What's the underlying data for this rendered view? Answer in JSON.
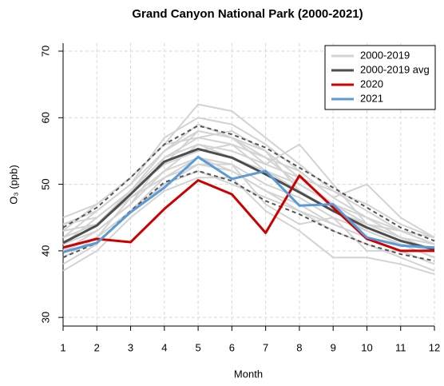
{
  "chart_data": {
    "type": "line",
    "title": "Grand Canyon National Park (2000-2021)",
    "x_label": "Month",
    "y_label": "O₃ (ppb)",
    "x": [
      1,
      2,
      3,
      4,
      5,
      6,
      7,
      8,
      9,
      10,
      11,
      12
    ],
    "xlim": [
      1,
      12
    ],
    "xticks": [
      1,
      2,
      3,
      4,
      5,
      6,
      7,
      8,
      9,
      10,
      11,
      12
    ],
    "ylim": [
      28.7,
      71.2
    ],
    "yticks": [
      30,
      40,
      50,
      60,
      70
    ],
    "grid": true,
    "legend": "top-right",
    "background": {
      "name": "2000-2019",
      "color": "#d3d3d3",
      "lines": [
        [
          44,
          46,
          50,
          55,
          58,
          57,
          54,
          52,
          48,
          45,
          43,
          41
        ],
        [
          42,
          44,
          49,
          54,
          57,
          58,
          55,
          51,
          47,
          44,
          42,
          40
        ],
        [
          40,
          43,
          47,
          52,
          54,
          53,
          50,
          48,
          45,
          43,
          41,
          39
        ],
        [
          38,
          41,
          46,
          51,
          53,
          52,
          49,
          46,
          44,
          42,
          40,
          38
        ],
        [
          45,
          47,
          51,
          56,
          62,
          61,
          57,
          53,
          49,
          46,
          43,
          42
        ],
        [
          41,
          45,
          49,
          53,
          55,
          56,
          52,
          49,
          46,
          44,
          42,
          41
        ],
        [
          43,
          44,
          48,
          52,
          56,
          54,
          52,
          50,
          47,
          45,
          42,
          40
        ],
        [
          39,
          42,
          46,
          50,
          52,
          50,
          48,
          46,
          43,
          41,
          39,
          37
        ],
        [
          42,
          46,
          50,
          57,
          60,
          59,
          56,
          52,
          48,
          50,
          45,
          42
        ],
        [
          41,
          43,
          47,
          54,
          56,
          55,
          53,
          56,
          50,
          44,
          43,
          41
        ],
        [
          37,
          40,
          45,
          49,
          51,
          51,
          46,
          43,
          39,
          39,
          38,
          36.5
        ],
        [
          44,
          45,
          49,
          53,
          58,
          57,
          55,
          49,
          46,
          43,
          41,
          40
        ],
        [
          40,
          42,
          48,
          51,
          54,
          52,
          49,
          47,
          44,
          42,
          41,
          39
        ],
        [
          42,
          44,
          49,
          55,
          59,
          57,
          53,
          51,
          49,
          47,
          44,
          42
        ],
        [
          43,
          47,
          51,
          56,
          57,
          56,
          54,
          50,
          47,
          44,
          43,
          41
        ],
        [
          40,
          41,
          46,
          50,
          53,
          53,
          47,
          44,
          45,
          40,
          40,
          38
        ]
      ]
    },
    "dashed": {
      "color": "#555555",
      "lines": [
        [
          43.5,
          46.5,
          51,
          56,
          58.8,
          57.5,
          55.5,
          52.5,
          49.5,
          46.5,
          43.5,
          41.5
        ],
        [
          39,
          41.2,
          46,
          50.3,
          52,
          50.5,
          47.5,
          45.5,
          43,
          41,
          39.5,
          38.5
        ]
      ]
    },
    "series": [
      {
        "name": "2000-2019 avg",
        "color": "#4d4d4d",
        "values": [
          41.2,
          43.8,
          48.5,
          53.4,
          55.3,
          54,
          51.5,
          48.8,
          46,
          43.5,
          41.5,
          40.2
        ]
      },
      {
        "name": "2020",
        "color": "#cc0000",
        "values": [
          40.5,
          41.8,
          41.3,
          46.3,
          50.6,
          48.5,
          42.7,
          51.3,
          46.5,
          41.8,
          40,
          40
        ]
      },
      {
        "name": "2021",
        "color": "#5b9bd5",
        "values": [
          39.8,
          41.2,
          45.8,
          49.5,
          54.1,
          50.8,
          52,
          46.8,
          47,
          42,
          40.8,
          40.5
        ]
      }
    ]
  }
}
